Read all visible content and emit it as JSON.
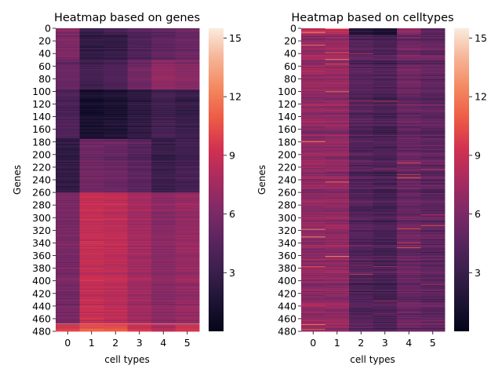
{
  "chart_data": [
    {
      "type": "heatmap",
      "title": "Heatmap based on genes",
      "xlabel": "cell types",
      "ylabel": "Genes",
      "x_categories": [
        "0",
        "1",
        "2",
        "3",
        "4",
        "5"
      ],
      "y_ticks": [
        "0",
        "20",
        "40",
        "60",
        "80",
        "100",
        "120",
        "140",
        "160",
        "180",
        "200",
        "220",
        "240",
        "260",
        "280",
        "300",
        "320",
        "340",
        "360",
        "380",
        "400",
        "420",
        "440",
        "460",
        "480"
      ],
      "colorbar": {
        "min": 0,
        "max": 15.5,
        "ticks": [
          "3",
          "6",
          "9",
          "12",
          "15"
        ]
      },
      "colormap": "rocket",
      "row_blocks": [
        {
          "rows": "0-10",
          "values": [
            6.5,
            3.2,
            3.8,
            4.5,
            5.0,
            5.5
          ]
        },
        {
          "rows": "10-50",
          "values": [
            6.0,
            2.5,
            2.7,
            4.0,
            4.8,
            5.2
          ]
        },
        {
          "rows": "50-97",
          "values": [
            5.2,
            3.5,
            4.0,
            5.5,
            6.8,
            6.5
          ]
        },
        {
          "rows": "97-175",
          "values": [
            4.0,
            1.2,
            1.5,
            2.5,
            3.5,
            3.0
          ]
        },
        {
          "rows": "175-260",
          "values": [
            2.5,
            5.5,
            5.2,
            4.5,
            3.0,
            3.5
          ]
        },
        {
          "rows": "260-470",
          "values": [
            5.8,
            8.8,
            8.5,
            7.5,
            6.5,
            7.0
          ]
        },
        {
          "rows": "470-480",
          "values": [
            9.5,
            10.5,
            10.5,
            9.0,
            8.0,
            9.0
          ]
        }
      ]
    },
    {
      "type": "heatmap",
      "title": "Heatmap based on celltypes",
      "xlabel": "cell types",
      "ylabel": "Genes",
      "x_categories": [
        "0",
        "1",
        "2",
        "3",
        "4",
        "5"
      ],
      "y_ticks": [
        "0",
        "20",
        "40",
        "60",
        "80",
        "100",
        "120",
        "140",
        "160",
        "180",
        "200",
        "220",
        "240",
        "260",
        "280",
        "300",
        "320",
        "340",
        "360",
        "380",
        "400",
        "420",
        "440",
        "460",
        "480"
      ],
      "colorbar": {
        "min": 0,
        "max": 15.5,
        "ticks": [
          "3",
          "6",
          "9",
          "12",
          "15"
        ]
      },
      "colormap": "rocket",
      "column_means": [
        6.8,
        6.8,
        4.2,
        3.8,
        5.2,
        4.8
      ],
      "note_rows_0_10": [
        8.0,
        8.0,
        1.5,
        1.0,
        6.0,
        4.0
      ]
    }
  ]
}
